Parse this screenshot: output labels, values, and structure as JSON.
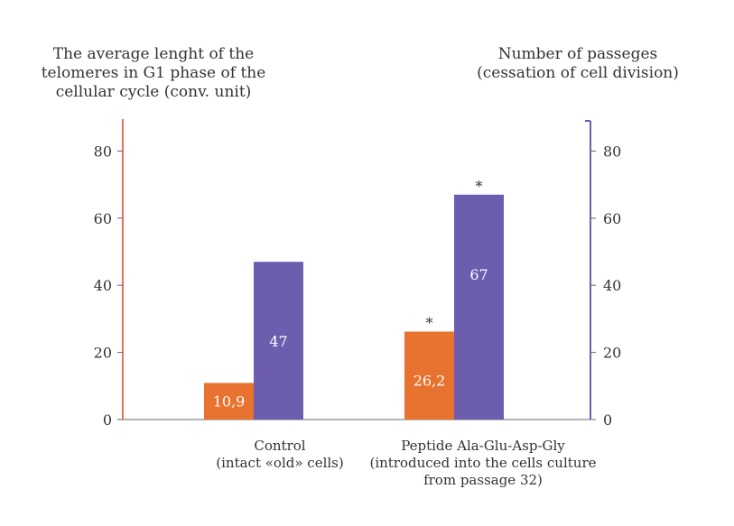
{
  "chart_data": {
    "type": "bar",
    "left_axis": {
      "title_lines": [
        "The average lenght of the",
        "telomeres in G1 phase of the",
        "cellular cycle (conv. unit)"
      ],
      "ticks": [
        "0",
        "20",
        "40",
        "60",
        "80"
      ],
      "range": [
        0,
        90
      ],
      "color": "#E8735A"
    },
    "right_axis": {
      "title_lines": [
        "Number of passeges",
        "(cessation of cell division)"
      ],
      "ticks": [
        "0",
        "20",
        "40",
        "60",
        "80"
      ],
      "range": [
        0,
        90
      ],
      "color": "#6A5DAD"
    },
    "categories": [
      {
        "lines": [
          "Control",
          "(intact «old» cells)"
        ]
      },
      {
        "lines": [
          "Peptide Ala-Glu-Asp-Gly",
          "(introduced into the cells culture",
          "from passage 32)"
        ]
      }
    ],
    "series": [
      {
        "axis": "left",
        "color": "#E8722F",
        "values": [
          10.9,
          26.2
        ],
        "labels": [
          "10,9",
          "26,2"
        ],
        "marks": [
          "",
          "*"
        ]
      },
      {
        "axis": "right",
        "color": "#6C5DAE",
        "values": [
          47,
          67
        ],
        "labels": [
          "47",
          "67"
        ],
        "marks": [
          "",
          "*"
        ]
      }
    ]
  }
}
